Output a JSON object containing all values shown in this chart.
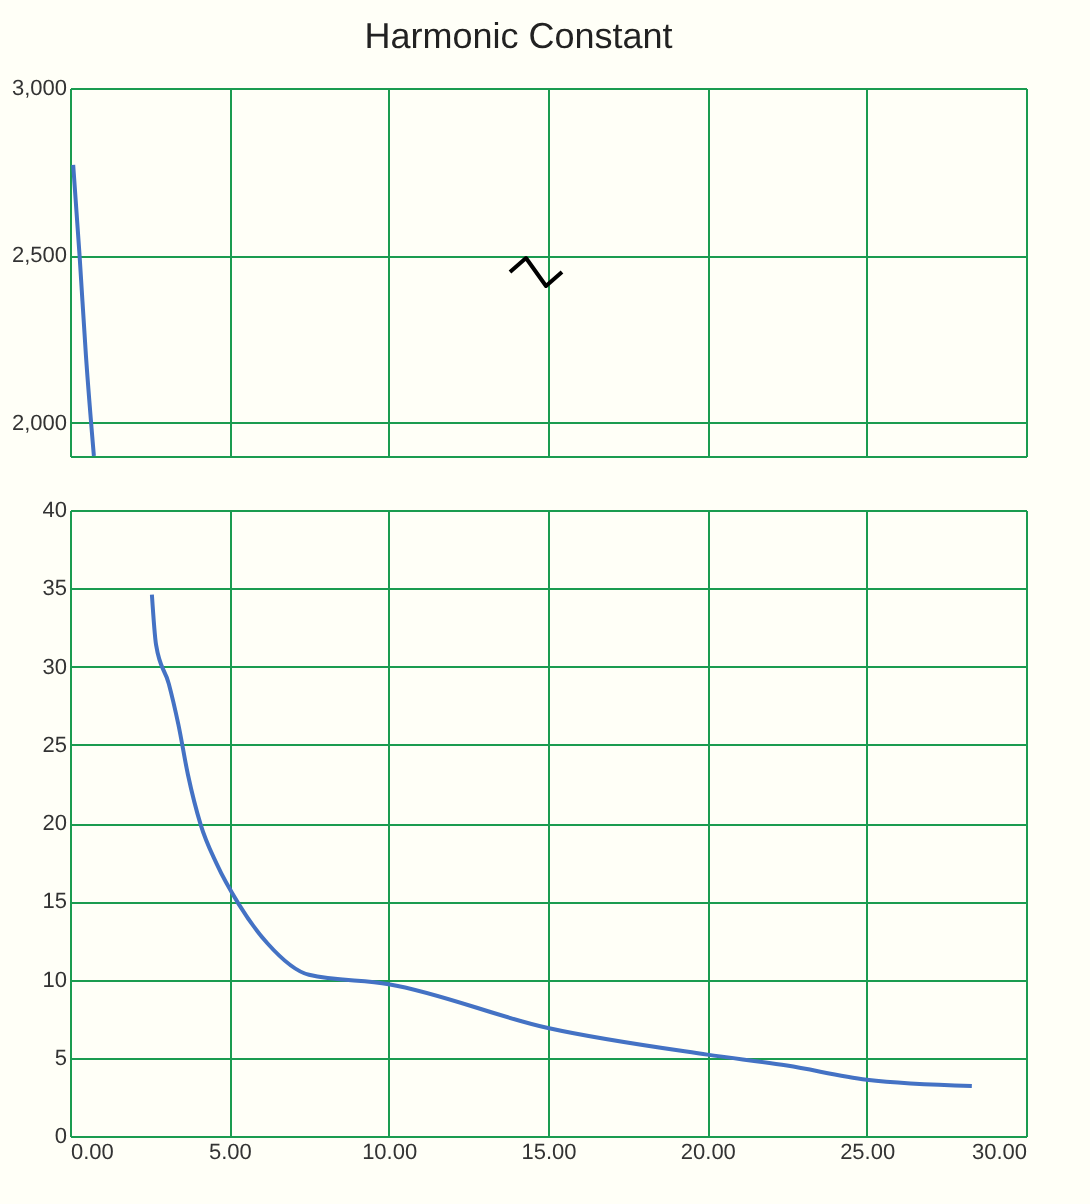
{
  "chart_data": [
    {
      "type": "line",
      "title": "Harmonic Constant",
      "tick_labels": "y",
      "grid": true,
      "legend": false,
      "xlim": [
        0,
        30
      ],
      "xticks": [
        0,
        5,
        10,
        15,
        20,
        25,
        30
      ],
      "ylim": [
        1900,
        3000
      ],
      "yticks": [
        {
          "value": 2000,
          "label": "2,000"
        },
        {
          "value": 2500,
          "label": "2,500"
        },
        {
          "value": 3000,
          "label": "3,000"
        }
      ],
      "series": [
        {
          "color": "#4472c4",
          "x": [
            0.1,
            0.3,
            0.5,
            0.75
          ],
          "values": [
            2770,
            2500,
            2200,
            1900
          ]
        }
      ]
    },
    {
      "type": "line",
      "grid": true,
      "legend": false,
      "xlim": [
        0,
        30
      ],
      "xticks": [
        {
          "value": 0,
          "label": "0.00"
        },
        {
          "value": 5,
          "label": "5.00"
        },
        {
          "value": 10,
          "label": "10.00"
        },
        {
          "value": 15,
          "label": "15.00"
        },
        {
          "value": 20,
          "label": "20.00"
        },
        {
          "value": 25,
          "label": "25.00"
        },
        {
          "value": 30,
          "label": "30.00"
        }
      ],
      "ylim": [
        0,
        40
      ],
      "yticks": [
        0,
        5,
        10,
        15,
        20,
        25,
        30,
        35,
        40
      ],
      "series": [
        {
          "color": "#4472c4",
          "x": [
            2.57,
            2.7,
            3.1,
            3.4,
            3.7,
            4.1,
            4.6,
            5.3,
            6.2,
            7.5,
            10,
            15,
            20,
            22.5,
            25,
            28.3
          ],
          "values": [
            34.6,
            31.4,
            28.9,
            26.3,
            23.1,
            19.9,
            17.4,
            14.8,
            12.3,
            10.3,
            9.7,
            6.9,
            5.2,
            4.5,
            3.6,
            3.2
          ]
        }
      ]
    }
  ]
}
